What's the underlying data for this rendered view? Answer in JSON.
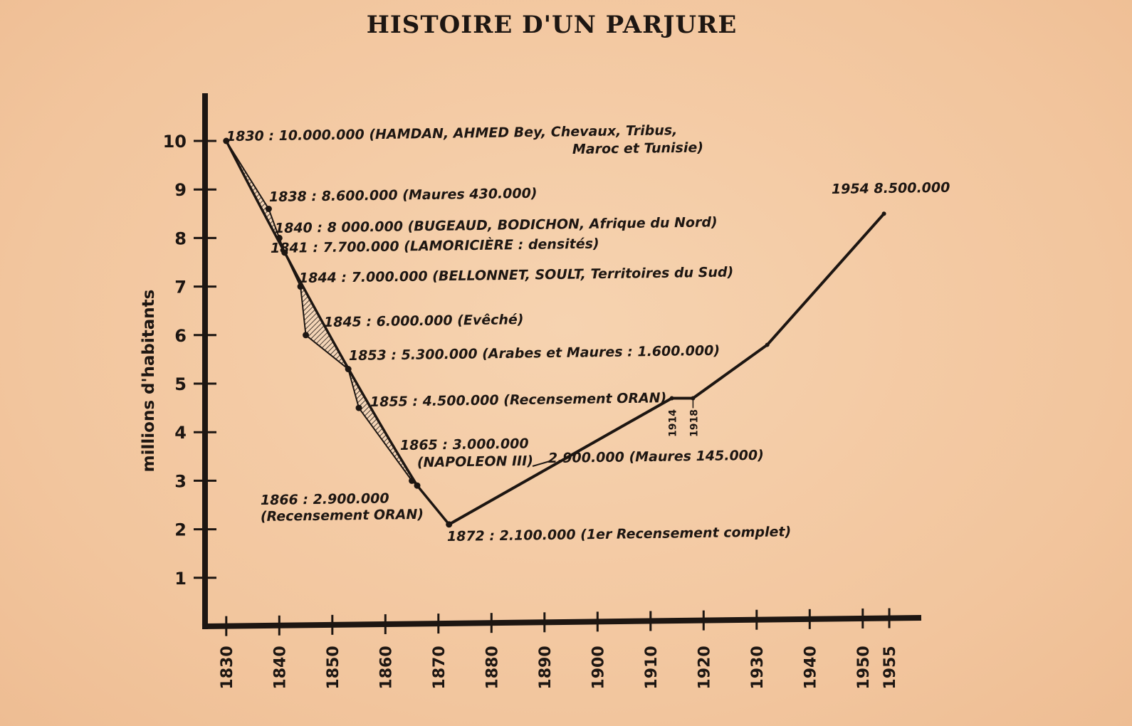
{
  "chart_data": {
    "type": "line",
    "title": "HISTOIRE D'UN PARJURE",
    "xlabel": "",
    "ylabel": "millions d'habitants",
    "xlim": [
      1826,
      1962
    ],
    "ylim": [
      0,
      11
    ],
    "y_ticks": [
      1,
      2,
      3,
      4,
      5,
      6,
      7,
      8,
      9,
      10
    ],
    "x_tick_labels": [
      "1830",
      "1840",
      "1850",
      "1860",
      "1870",
      "1880",
      "1890",
      "1900",
      "1910",
      "1920",
      "1930",
      "1940",
      "1950",
      "1955"
    ],
    "x_tick_values": [
      1830,
      1840,
      1850,
      1860,
      1870,
      1880,
      1890,
      1900,
      1910,
      1920,
      1930,
      1940,
      1950,
      1955
    ],
    "grid": false,
    "legend": "none",
    "series": [
      {
        "points": [
          {
            "x": 1830,
            "y": 10.0
          },
          {
            "x": 1838,
            "y": 8.6
          },
          {
            "x": 1840,
            "y": 8.0
          },
          {
            "x": 1841,
            "y": 7.7
          },
          {
            "x": 1844,
            "y": 7.0
          },
          {
            "x": 1845,
            "y": 6.0
          },
          {
            "x": 1853,
            "y": 5.3
          },
          {
            "x": 1855,
            "y": 4.5
          },
          {
            "x": 1865,
            "y": 3.0
          },
          {
            "x": 1866,
            "y": 2.9
          },
          {
            "x": 1872,
            "y": 2.1
          }
        ]
      },
      {
        "points": [
          {
            "x": 1872,
            "y": 2.1
          },
          {
            "x": 1914,
            "y": 4.7
          },
          {
            "x": 1918,
            "y": 4.7
          },
          {
            "x": 1932,
            "y": 5.8
          },
          {
            "x": 1954,
            "y": 8.5
          }
        ]
      }
    ],
    "annotations": [
      "1830 : 10.000.000 (HAMDAN, AHMED Bey, Chevaux, Tribus,",
      "Maroc et Tunisie)",
      "1838 : 8.600.000 (Maures 430.000)",
      "1840 : 8 000.000 (BUGEAUD, BODICHON, Afrique du Nord)",
      "1841 : 7.700.000 (LAMORICIÈRE : densités)",
      "1844 : 7.000.000 (BELLONNET, SOULT, Territoires du Sud)",
      "1845 : 6.000.000 (Evêché)",
      "1853 : 5.300.000 (Arabes et Maures : 1.600.000)",
      "1855 : 4.500.000 (Recensement ORAN)",
      "1865 : 3.000.000",
      "(NAPOLEON III)",
      "2.900.000 (Maures 145.000)",
      "1866 : 2.900.000",
      "(Recensement ORAN)",
      "1872 : 2.100.000 (1er Recensement complet)",
      "1914",
      "1918",
      "1954   8.500.000"
    ],
    "colors": {
      "line": "#1d1612",
      "background": "#f3c9a2",
      "hatch": "#1d1612"
    }
  }
}
